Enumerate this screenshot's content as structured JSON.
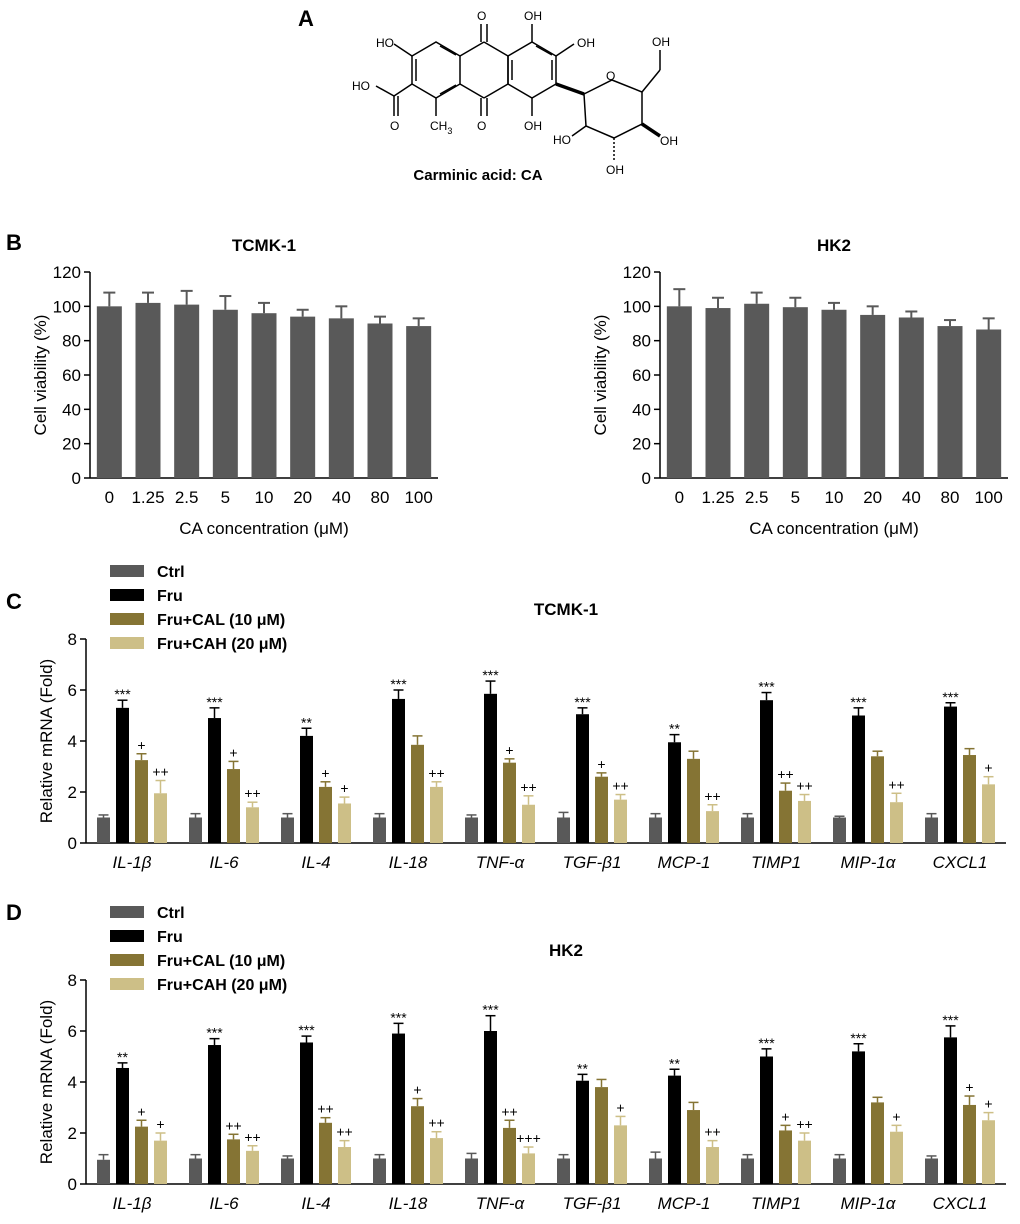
{
  "panel_a": {
    "letter": "A",
    "caption": "Carminic acid: CA",
    "atoms": {
      "ho_left": "HO",
      "o_top": "O",
      "oh_top": "OH",
      "oh_right": "OH",
      "oh_ch2": "OH",
      "o_ring": "O",
      "ho_acid": "HO",
      "o_acid": "O",
      "ch3": "CH",
      "ch3_sub": "3",
      "o_bottom": "O",
      "oh_bottom": "OH",
      "ho_sugar": "HO",
      "oh_sugar_right": "OH",
      "oh_sugar_bottom": "OH"
    }
  },
  "colors": {
    "ctrl": "#595959",
    "fru": "#000000",
    "cal": "#857434",
    "cah": "#cdbf87",
    "bar_b": "#595959"
  },
  "legend": {
    "ctrl": "Ctrl",
    "fru": "Fru",
    "cal": "Fru+CAL (10 μM)",
    "cah": "Fru+CAH (20 μM)"
  },
  "chart_data": [
    {
      "id": "B1",
      "panel_letter": "B",
      "type": "bar",
      "title": "TCMK-1",
      "xlabel": "CA concentration (μM)",
      "ylabel": "Cell viability (%)",
      "ylim": [
        0,
        120
      ],
      "yticks": [
        "0",
        "20",
        "40",
        "60",
        "80",
        "100",
        "120"
      ],
      "categories": [
        "0",
        "1.25",
        "2.5",
        "5",
        "10",
        "20",
        "40",
        "80",
        "100"
      ],
      "values": [
        100,
        102,
        101,
        98,
        96,
        94,
        93,
        90,
        88.5
      ],
      "errors": [
        8,
        6,
        8,
        8,
        6,
        4,
        7,
        4,
        4.5
      ]
    },
    {
      "id": "B2",
      "panel_letter": "",
      "type": "bar",
      "title": "HK2",
      "xlabel": "CA concentration (μM)",
      "ylabel": "Cell viability (%)",
      "ylim": [
        0,
        120
      ],
      "yticks": [
        "0",
        "20",
        "40",
        "60",
        "80",
        "100",
        "120"
      ],
      "categories": [
        "0",
        "1.25",
        "2.5",
        "5",
        "10",
        "20",
        "40",
        "80",
        "100"
      ],
      "values": [
        100,
        99,
        101.5,
        99.5,
        98,
        95,
        93.5,
        88.5,
        86.5
      ],
      "errors": [
        10,
        6,
        6.5,
        5.5,
        4,
        5,
        3.5,
        3.5,
        6.5
      ]
    },
    {
      "id": "C",
      "panel_letter": "C",
      "type": "bar",
      "title": "TCMK-1",
      "ylabel": "Relative mRNA (Fold)",
      "ylim": [
        0,
        8
      ],
      "yticks": [
        "0",
        "2",
        "4",
        "6",
        "8"
      ],
      "categories": [
        "IL-1β",
        "IL-6",
        "IL-4",
        "IL-18",
        "TNF-α",
        "TGF-β1",
        "MCP-1",
        "TIMP1",
        "MIP-1α",
        "CXCL1"
      ],
      "series": [
        {
          "name": "Ctrl",
          "values": [
            1.0,
            1.0,
            1.0,
            1.0,
            1.0,
            1.0,
            1.0,
            1.0,
            1.0,
            1.0
          ],
          "errors": [
            0.1,
            0.15,
            0.15,
            0.15,
            0.1,
            0.2,
            0.15,
            0.15,
            0.05,
            0.15
          ],
          "marks": [
            "",
            "",
            "",
            "",
            "",
            "",
            "",
            "",
            "",
            ""
          ]
        },
        {
          "name": "Fru",
          "values": [
            5.3,
            4.9,
            4.2,
            5.65,
            5.85,
            5.05,
            3.95,
            5.6,
            5.0,
            5.35
          ],
          "errors": [
            0.3,
            0.4,
            0.3,
            0.35,
            0.5,
            0.25,
            0.3,
            0.3,
            0.3,
            0.15
          ],
          "marks": [
            "***",
            "***",
            "**",
            "***",
            "***",
            "***",
            "**",
            "***",
            "***",
            "***"
          ]
        },
        {
          "name": "Fru+CAL (10 μM)",
          "values": [
            3.25,
            2.9,
            2.2,
            3.85,
            3.15,
            2.6,
            3.3,
            2.05,
            3.4,
            3.45
          ],
          "errors": [
            0.25,
            0.3,
            0.2,
            0.35,
            0.15,
            0.15,
            0.3,
            0.3,
            0.2,
            0.25
          ],
          "marks": [
            "+",
            "+",
            "+",
            "",
            "+",
            "+",
            "",
            "++",
            "",
            ""
          ]
        },
        {
          "name": "Fru+CAH (20 μM)",
          "values": [
            1.95,
            1.4,
            1.55,
            2.2,
            1.5,
            1.7,
            1.25,
            1.65,
            1.6,
            2.3
          ],
          "errors": [
            0.5,
            0.2,
            0.25,
            0.2,
            0.35,
            0.2,
            0.25,
            0.25,
            0.35,
            0.3
          ],
          "marks": [
            "++",
            "++",
            "+",
            "++",
            "++",
            "++",
            "++",
            "++",
            "++",
            "+"
          ]
        }
      ]
    },
    {
      "id": "D",
      "panel_letter": "D",
      "type": "bar",
      "title": "HK2",
      "ylabel": "Relative mRNA (Fold)",
      "ylim": [
        0,
        8
      ],
      "yticks": [
        "0",
        "2",
        "4",
        "6",
        "8"
      ],
      "categories": [
        "IL-1β",
        "IL-6",
        "IL-4",
        "IL-18",
        "TNF-α",
        "TGF-β1",
        "MCP-1",
        "TIMP1",
        "MIP-1α",
        "CXCL1"
      ],
      "series": [
        {
          "name": "Ctrl",
          "values": [
            0.95,
            1.0,
            1.0,
            1.0,
            1.0,
            1.0,
            1.0,
            1.0,
            1.0,
            1.0
          ],
          "errors": [
            0.2,
            0.15,
            0.1,
            0.15,
            0.2,
            0.15,
            0.25,
            0.15,
            0.15,
            0.1
          ],
          "marks": [
            "",
            "",
            "",
            "",
            "",
            "",
            "",
            "",
            "",
            ""
          ]
        },
        {
          "name": "Fru",
          "values": [
            4.55,
            5.45,
            5.55,
            5.9,
            6.0,
            4.05,
            4.25,
            5.0,
            5.2,
            5.75
          ],
          "errors": [
            0.2,
            0.25,
            0.25,
            0.4,
            0.6,
            0.25,
            0.25,
            0.3,
            0.3,
            0.45
          ],
          "marks": [
            "**",
            "***",
            "***",
            "***",
            "***",
            "**",
            "**",
            "***",
            "***",
            "***"
          ]
        },
        {
          "name": "Fru+CAL (10 μM)",
          "values": [
            2.25,
            1.75,
            2.4,
            3.05,
            2.2,
            3.8,
            2.9,
            2.1,
            3.2,
            3.1
          ],
          "errors": [
            0.25,
            0.2,
            0.2,
            0.3,
            0.3,
            0.3,
            0.3,
            0.2,
            0.2,
            0.35
          ],
          "marks": [
            "+",
            "++",
            "++",
            "+",
            "++",
            "",
            "",
            "+",
            "",
            "+"
          ]
        },
        {
          "name": "Fru+CAH (20 μM)",
          "values": [
            1.7,
            1.3,
            1.45,
            1.8,
            1.2,
            2.3,
            1.45,
            1.7,
            2.05,
            2.5
          ],
          "errors": [
            0.3,
            0.2,
            0.25,
            0.25,
            0.25,
            0.35,
            0.25,
            0.3,
            0.25,
            0.3
          ],
          "marks": [
            "+",
            "++",
            "++",
            "++",
            "+++",
            "+",
            "++",
            "++",
            "+",
            "+"
          ]
        }
      ]
    }
  ]
}
